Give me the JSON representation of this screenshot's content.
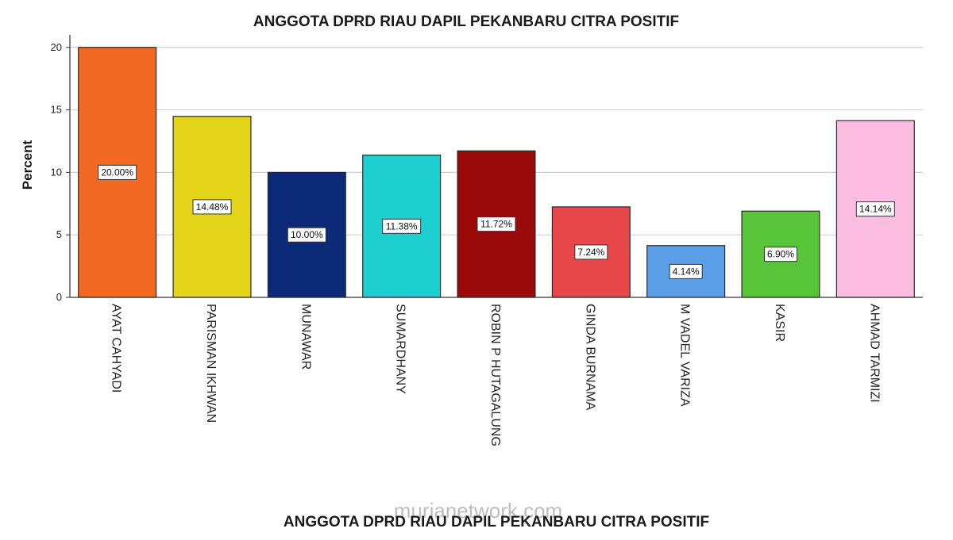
{
  "watermark": "murianetwork.com",
  "chart_data": {
    "type": "bar",
    "title": "ANGGOTA DPRD RIAU DAPIL PEKANBARU CITRA POSITIF",
    "xlabel": "ANGGOTA DPRD RIAU DAPIL PEKANBARU CITRA POSITIF",
    "ylabel": "Percent",
    "ylim": [
      0,
      21
    ],
    "yticks": [
      "0",
      "5",
      "10",
      "15",
      "20"
    ],
    "grid": true,
    "categories": [
      "AYAT CAHYADI",
      "PARISMAN IKHWAN",
      "MUNAWAR",
      "SUMARDHANY",
      "ROBIN P HUTAGALUNG",
      "GINDA BURNAMA",
      "M VADEL VARIZA",
      "KASIR",
      "AHMAD TARMIZI"
    ],
    "values": [
      20.0,
      14.48,
      10.0,
      11.38,
      11.72,
      7.24,
      4.14,
      6.9,
      14.14
    ],
    "data_labels": [
      "20.00%",
      "14.48%",
      "10.00%",
      "11.38%",
      "11.72%",
      "7.24%",
      "4.14%",
      "6.90%",
      "14.14%"
    ],
    "colors": [
      "#f26a21",
      "#e3d419",
      "#0d2a78",
      "#1ecfcf",
      "#9b0a0a",
      "#e8474a",
      "#5a9ee8",
      "#58c43a",
      "#fcbde0"
    ]
  }
}
